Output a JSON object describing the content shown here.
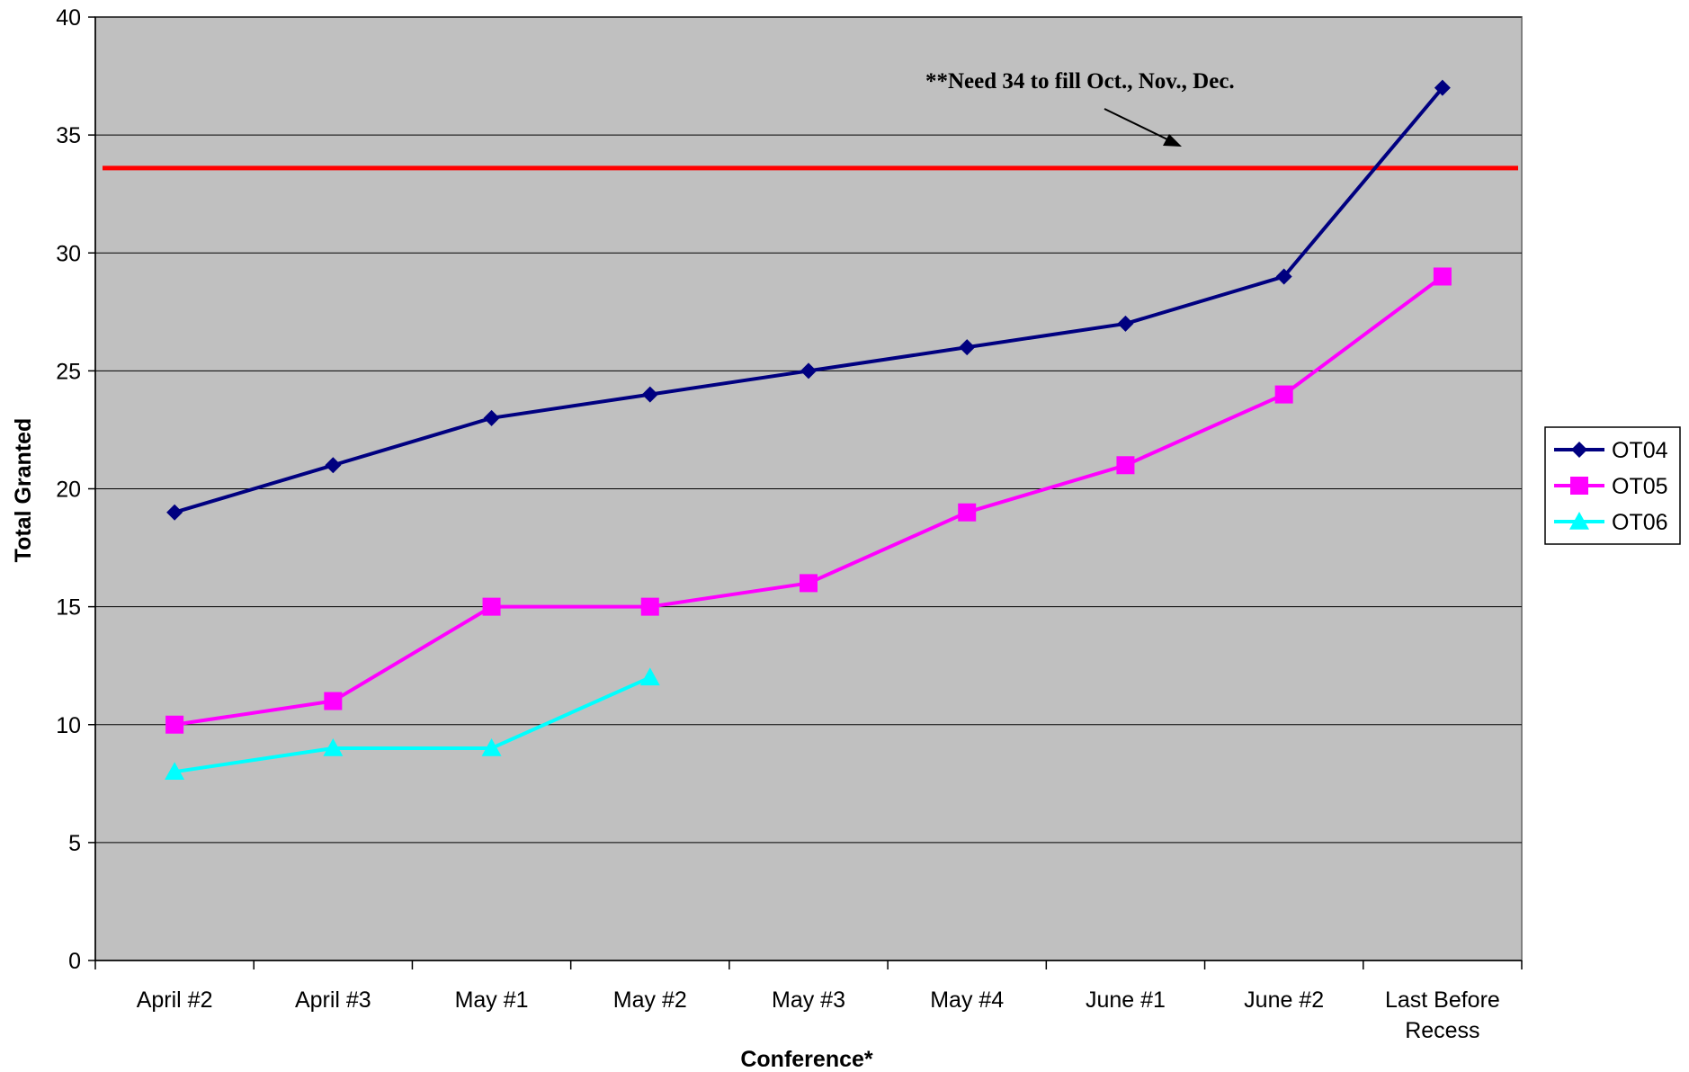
{
  "chart_data": {
    "type": "line",
    "categories": [
      "April #2",
      "April #3",
      "May #1",
      "May #2",
      "May #3",
      "May #4",
      "June #1",
      "June #2",
      "Last Before Recess"
    ],
    "category_lines": [
      [
        "April #2"
      ],
      [
        "April #3"
      ],
      [
        "May #1"
      ],
      [
        "May #2"
      ],
      [
        "May #3"
      ],
      [
        "May #4"
      ],
      [
        "June #1"
      ],
      [
        "June #2"
      ],
      [
        "Last Before",
        "Recess"
      ]
    ],
    "series": [
      {
        "name": "OT04",
        "color": "#000080",
        "marker": "diamond",
        "values": [
          19,
          21,
          23,
          24,
          25,
          26,
          27,
          29,
          37
        ]
      },
      {
        "name": "OT05",
        "color": "#FF00FF",
        "marker": "square",
        "values": [
          10,
          11,
          15,
          15,
          16,
          19,
          21,
          24,
          29
        ]
      },
      {
        "name": "OT06",
        "color": "#00FFFF",
        "marker": "triangle",
        "values": [
          8,
          9,
          9,
          12,
          null,
          null,
          null,
          null,
          null
        ]
      }
    ],
    "reference_line": {
      "value": 33.6,
      "color": "#FF0000"
    },
    "annotation": "**Need 34 to fill Oct., Nov., Dec.",
    "xlabel": "Conference*",
    "ylabel": "Total Granted",
    "ylim": [
      0,
      40
    ],
    "yticks": [
      0,
      5,
      10,
      15,
      20,
      25,
      30,
      35,
      40
    ],
    "grid": true,
    "plot_background": "#C0C0C0",
    "legend_position": "right"
  }
}
